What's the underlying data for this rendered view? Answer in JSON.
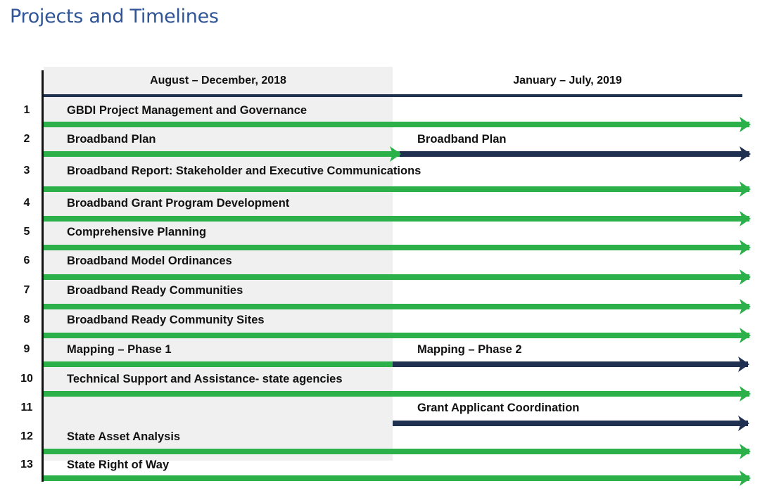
{
  "title": "Projects and Timelines",
  "periods": [
    "August – December, 2018",
    "January – July, 2019"
  ],
  "colors": {
    "green": "#2bb04a",
    "navy": "#1f3050",
    "title": "#2f5597",
    "column_shade": "#f0f0f0"
  },
  "rows": [
    {
      "num": "1",
      "left": "GBDI Project Management and Governance",
      "right": "",
      "bars": "green-full"
    },
    {
      "num": "2",
      "left": "Broadband Plan",
      "right": "Broadband Plan",
      "bars": "green-first-navy-second"
    },
    {
      "num": "3",
      "left": "Broadband Report: Stakeholder and Executive Communications",
      "right": "",
      "bars": "green-full"
    },
    {
      "num": "4",
      "left": "Broadband Grant Program Development",
      "right": "",
      "bars": "green-full"
    },
    {
      "num": "5",
      "left": "Comprehensive Planning",
      "right": "",
      "bars": "green-full"
    },
    {
      "num": "6",
      "left": "Broadband Model Ordinances",
      "right": "",
      "bars": "green-full"
    },
    {
      "num": "7",
      "left": "Broadband Ready Communities",
      "right": "",
      "bars": "green-full"
    },
    {
      "num": "8",
      "left": "Broadband Ready Community Sites",
      "right": "",
      "bars": "green-full"
    },
    {
      "num": "9",
      "left": "Mapping  – Phase 1",
      "right": "Mapping  – Phase 2",
      "bars": "green-to-navy"
    },
    {
      "num": "10",
      "left": "Technical Support and Assistance- state agencies",
      "right": "",
      "bars": "green-full"
    },
    {
      "num": "11",
      "left": "",
      "right": "Grant Applicant  Coordination",
      "bars": "navy-second"
    },
    {
      "num": "12",
      "left": "State Asset Analysis",
      "right": "",
      "bars": "green-full"
    },
    {
      "num": "13",
      "left": "State Right of Way",
      "right": "",
      "bars": "green-full"
    }
  ]
}
